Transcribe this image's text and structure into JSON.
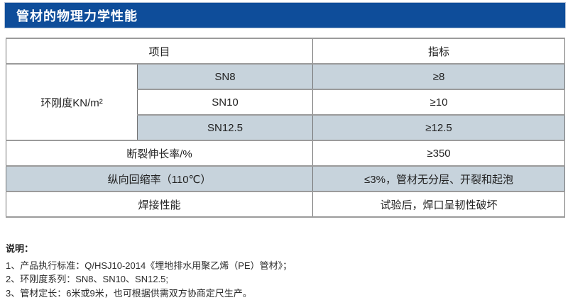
{
  "title": "管材的物理力学性能",
  "table": {
    "header": {
      "item": "项目",
      "indicator": "指标"
    },
    "ring_stiffness": {
      "label": "环刚度KN/m²",
      "rows": [
        {
          "grade": "SN8",
          "value": "≥8"
        },
        {
          "grade": "SN10",
          "value": "≥10"
        },
        {
          "grade": "SN12.5",
          "value": "≥12.5"
        }
      ]
    },
    "rows": [
      {
        "item": "断裂伸长率/%",
        "value": "≥350"
      },
      {
        "item": "纵向回缩率（110℃）",
        "value": "≤3%，管材无分层、开裂和起泡"
      },
      {
        "item": "焊接性能",
        "value": "试验后，焊口呈韧性破坏"
      }
    ]
  },
  "notes": {
    "heading": "说明：",
    "items": [
      "1、产品执行标准：Q/HSJ10-2014《埋地排水用聚乙烯（PE）管材》；",
      "2、环刚度系列：SN8、SN10、SN12.5;",
      "3、管材定长：6米或9米，也可根据供需双方协商定尺生产。"
    ]
  },
  "colors": {
    "header_bar": "#0e4d9a",
    "bar_outline": "#b5c3d8",
    "title_text": "#ffffff",
    "row_stripe": "#c7d3dc",
    "border_dark": "#737373",
    "border_light": "#9b9b9b"
  }
}
